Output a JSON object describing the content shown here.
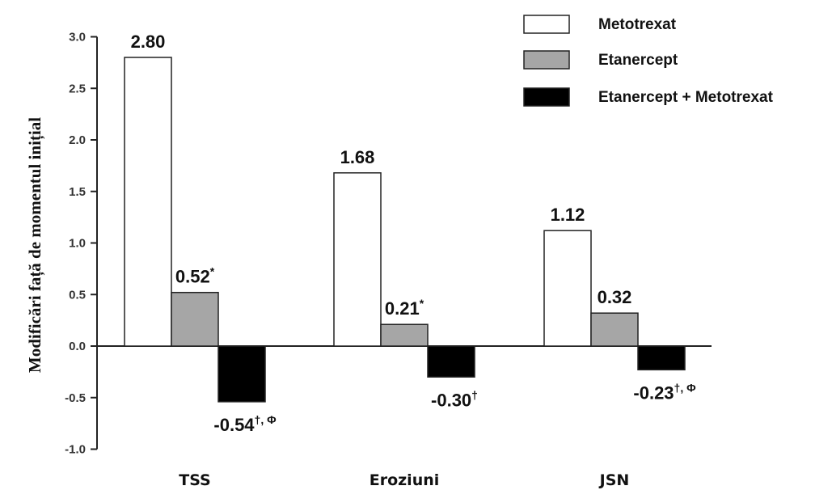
{
  "chart_data": {
    "type": "bar",
    "title": "",
    "xlabel": "",
    "ylabel": "Modificări față de momentul inițial",
    "ylim": [
      -1.0,
      3.0
    ],
    "yticks": [
      "3.0",
      "2.5",
      "2.0",
      "1.5",
      "1.0",
      "0.5",
      "0.0",
      "-0.5",
      "-1.0"
    ],
    "categories": [
      "TSS",
      "Eroziuni",
      "JSN"
    ],
    "legend_position": "top-right",
    "grid": false,
    "series": [
      {
        "name": "Metotrexat",
        "color": "#ffffff",
        "values": [
          2.8,
          1.68,
          1.12
        ],
        "labels": [
          {
            "value": "2.80",
            "sup": ""
          },
          {
            "value": "1.68",
            "sup": ""
          },
          {
            "value": "1.12",
            "sup": ""
          }
        ]
      },
      {
        "name": "Etanercept",
        "color": "#a6a6a6",
        "values": [
          0.52,
          0.21,
          0.32
        ],
        "labels": [
          {
            "value": "0.52",
            "sup": "*"
          },
          {
            "value": "0.21",
            "sup": "*"
          },
          {
            "value": "0.32",
            "sup": ""
          }
        ]
      },
      {
        "name": "Etanercept + Metotrexat",
        "color": "#000000",
        "values": [
          -0.54,
          -0.3,
          -0.23
        ],
        "labels": [
          {
            "value": "-0.54",
            "sup": "†, Φ"
          },
          {
            "value": "-0.30",
            "sup": "†"
          },
          {
            "value": "-0.23",
            "sup": "†, Φ"
          }
        ]
      }
    ]
  }
}
